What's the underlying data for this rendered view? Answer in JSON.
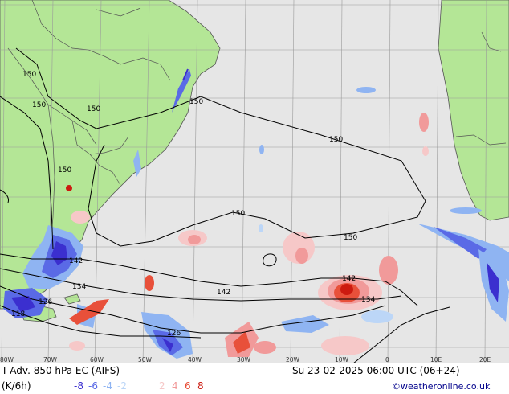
{
  "map": {
    "colors": {
      "ocean": "#e6e6e6",
      "land": "#b4e696",
      "grid": "#9a9a9a",
      "coast": "#555555",
      "contour": "#000000",
      "cold": [
        "#3b2fcf",
        "#5a6ae6",
        "#8fb4f2",
        "#bcd6f7"
      ],
      "warm": [
        "#f6c8c8",
        "#f19a9a",
        "#e8503a",
        "#cc1a10"
      ]
    },
    "contour_labels": [
      "150",
      "150",
      "150",
      "150",
      "150",
      "150",
      "150",
      "150",
      "142",
      "142",
      "142",
      "134",
      "134",
      "126",
      "126",
      "118"
    ],
    "lon_labels": [
      "80W",
      "70W",
      "60W",
      "50W",
      "40W",
      "30W",
      "20W",
      "10W",
      "0",
      "10E",
      "20E"
    ]
  },
  "footer": {
    "title": "T-Adv. 850 hPa EC (AIFS)",
    "datetime": "Su 23-02-2025 06:00 UTC (06+24)",
    "units": "(K/6h)",
    "legend_values": [
      {
        "text": "-8",
        "color": "#3b2fcf"
      },
      {
        "text": "-6",
        "color": "#5a6ae6"
      },
      {
        "text": "-4",
        "color": "#8fb4f2"
      },
      {
        "text": "-2",
        "color": "#bcd6f7"
      },
      {
        "text": "2",
        "color": "#f6c8c8"
      },
      {
        "text": "4",
        "color": "#f19a9a"
      },
      {
        "text": "6",
        "color": "#e8503a"
      },
      {
        "text": "8",
        "color": "#cc1a10"
      }
    ],
    "credit": "©weatheronline.co.uk"
  }
}
